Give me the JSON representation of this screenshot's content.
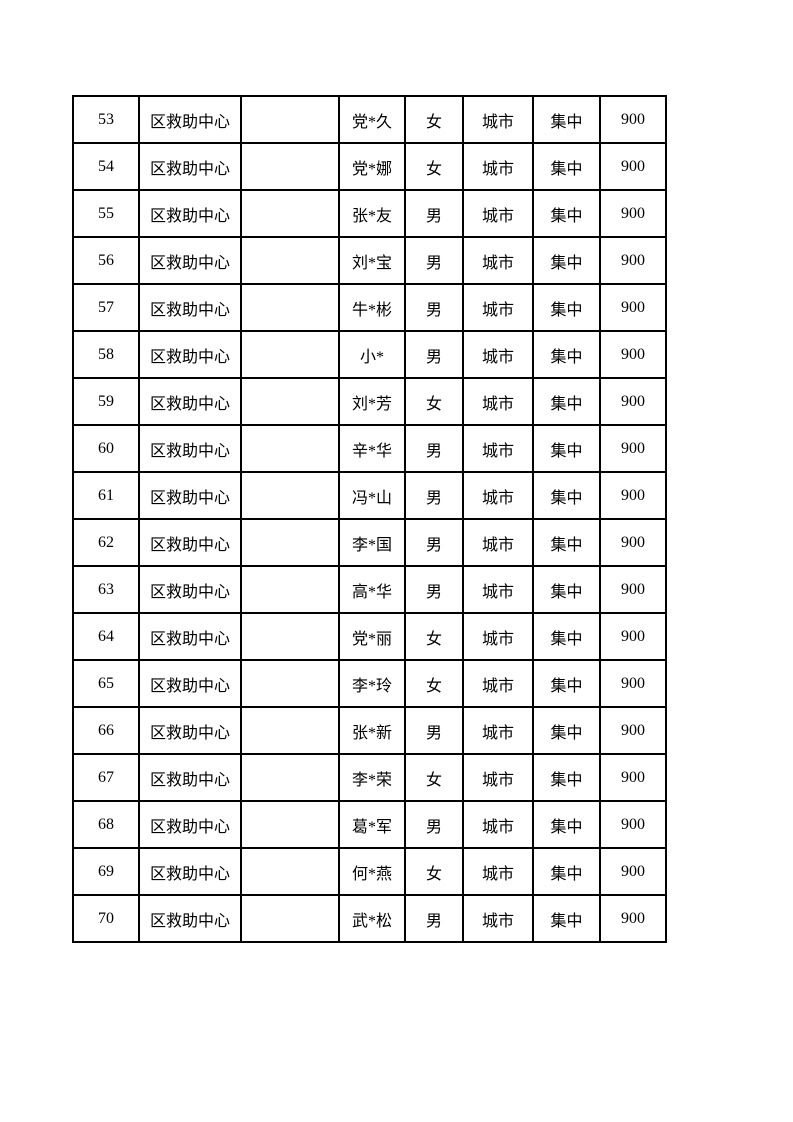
{
  "colors": {
    "page_background": "#ffffff",
    "table_border": "#000000",
    "text": "#000000"
  },
  "table": {
    "column_keys": [
      "seq",
      "org",
      "blank",
      "name",
      "gender",
      "area",
      "mode",
      "amount"
    ],
    "rows": [
      {
        "seq": "53",
        "org": "区救助中心",
        "blank": "",
        "name": "党*久",
        "gender": "女",
        "area": "城市",
        "mode": "集中",
        "amount": "900"
      },
      {
        "seq": "54",
        "org": "区救助中心",
        "blank": "",
        "name": "党*娜",
        "gender": "女",
        "area": "城市",
        "mode": "集中",
        "amount": "900"
      },
      {
        "seq": "55",
        "org": "区救助中心",
        "blank": "",
        "name": "张*友",
        "gender": "男",
        "area": "城市",
        "mode": "集中",
        "amount": "900"
      },
      {
        "seq": "56",
        "org": "区救助中心",
        "blank": "",
        "name": "刘*宝",
        "gender": "男",
        "area": "城市",
        "mode": "集中",
        "amount": "900"
      },
      {
        "seq": "57",
        "org": "区救助中心",
        "blank": "",
        "name": "牛*彬",
        "gender": "男",
        "area": "城市",
        "mode": "集中",
        "amount": "900"
      },
      {
        "seq": "58",
        "org": "区救助中心",
        "blank": "",
        "name": "小*",
        "gender": "男",
        "area": "城市",
        "mode": "集中",
        "amount": "900"
      },
      {
        "seq": "59",
        "org": "区救助中心",
        "blank": "",
        "name": "刘*芳",
        "gender": "女",
        "area": "城市",
        "mode": "集中",
        "amount": "900"
      },
      {
        "seq": "60",
        "org": "区救助中心",
        "blank": "",
        "name": "辛*华",
        "gender": "男",
        "area": "城市",
        "mode": "集中",
        "amount": "900"
      },
      {
        "seq": "61",
        "org": "区救助中心",
        "blank": "",
        "name": "冯*山",
        "gender": "男",
        "area": "城市",
        "mode": "集中",
        "amount": "900"
      },
      {
        "seq": "62",
        "org": "区救助中心",
        "blank": "",
        "name": "李*国",
        "gender": "男",
        "area": "城市",
        "mode": "集中",
        "amount": "900"
      },
      {
        "seq": "63",
        "org": "区救助中心",
        "blank": "",
        "name": "高*华",
        "gender": "男",
        "area": "城市",
        "mode": "集中",
        "amount": "900"
      },
      {
        "seq": "64",
        "org": "区救助中心",
        "blank": "",
        "name": "党*丽",
        "gender": "女",
        "area": "城市",
        "mode": "集中",
        "amount": "900"
      },
      {
        "seq": "65",
        "org": "区救助中心",
        "blank": "",
        "name": "李*玲",
        "gender": "女",
        "area": "城市",
        "mode": "集中",
        "amount": "900"
      },
      {
        "seq": "66",
        "org": "区救助中心",
        "blank": "",
        "name": "张*新",
        "gender": "男",
        "area": "城市",
        "mode": "集中",
        "amount": "900"
      },
      {
        "seq": "67",
        "org": "区救助中心",
        "blank": "",
        "name": "李*荣",
        "gender": "女",
        "area": "城市",
        "mode": "集中",
        "amount": "900"
      },
      {
        "seq": "68",
        "org": "区救助中心",
        "blank": "",
        "name": "葛*军",
        "gender": "男",
        "area": "城市",
        "mode": "集中",
        "amount": "900"
      },
      {
        "seq": "69",
        "org": "区救助中心",
        "blank": "",
        "name": "何*燕",
        "gender": "女",
        "area": "城市",
        "mode": "集中",
        "amount": "900"
      },
      {
        "seq": "70",
        "org": "区救助中心",
        "blank": "",
        "name": "武*松",
        "gender": "男",
        "area": "城市",
        "mode": "集中",
        "amount": "900"
      }
    ]
  }
}
